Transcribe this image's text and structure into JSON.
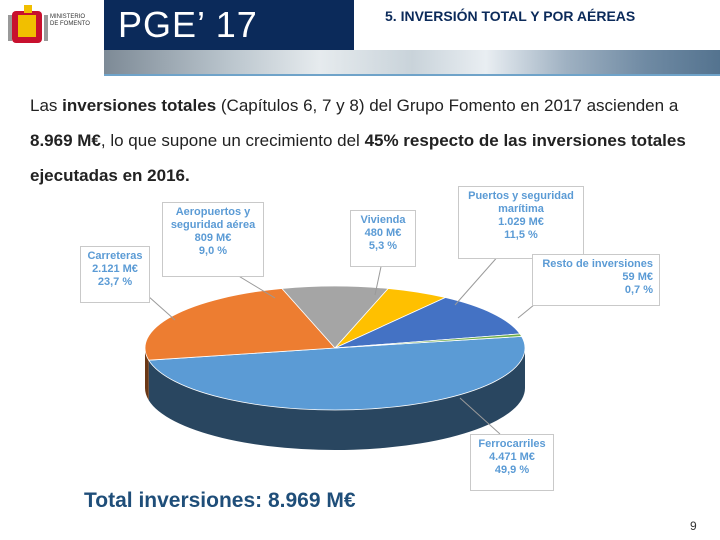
{
  "header": {
    "ministry_line1": "MINISTERIO",
    "ministry_line2": "DE FOMENTO",
    "pge": "PGE’ 17",
    "title": "5. INVERSIÓN TOTAL Y POR AÉREAS"
  },
  "intro": {
    "part1": "Las ",
    "bold1": "inversiones totales",
    "part2": " (Capítulos 6, 7 y 8) del Grupo Fomento en 2017 ascienden a ",
    "bold2": "8.969 M€",
    "part3": ", lo que supone un crecimiento del ",
    "bold3": "45% respecto de las inversiones totales ejecutadas en 2016."
  },
  "colors": {
    "ferrocarriles": "#5b9bd5",
    "carreteras": "#ed7d31",
    "aeropuertos": "#a5a5a5",
    "vivienda": "#ffc000",
    "puertos": "#4472c4",
    "resto": "#70ad47",
    "label_blue": "#5b9bd5",
    "title_blue": "#1f4e79"
  },
  "chart_data": {
    "type": "pie",
    "title": "Total inversiones: 8.969 M€",
    "slices": [
      {
        "name": "Ferrocarriles",
        "value": 4471,
        "value_label": "4.471 M€",
        "percent_label": "49,9 %"
      },
      {
        "name": "Carreteras",
        "value": 2121,
        "value_label": "2.121 M€",
        "percent_label": "23,7 %"
      },
      {
        "name": "Aeropuertos y seguridad aérea",
        "value": 809,
        "value_label": "809 M€",
        "percent_label": "9,0 %"
      },
      {
        "name": "Vivienda",
        "value": 480,
        "value_label": "480 M€",
        "percent_label": "5,3 %"
      },
      {
        "name": "Puertos y seguridad marítima",
        "value": 1029,
        "value_label": "1.029 M€",
        "percent_label": "11,5 %"
      },
      {
        "name": "Resto de inversiones",
        "value": 59,
        "value_label": "59 M€",
        "percent_label": "0,7 %"
      }
    ]
  },
  "callouts": {
    "aeropuertos": {
      "l1": "Aeropuertos y",
      "l2": "seguridad aérea",
      "v": "809 M€",
      "p": "9,0 %"
    },
    "vivienda": {
      "l1": "Vivienda",
      "v": "480 M€",
      "p": "5,3 %"
    },
    "puertos": {
      "l1": "Puertos y seguridad",
      "l2": "marítima",
      "v": "1.029 M€",
      "p": "11,5 %"
    },
    "resto": {
      "l1": "Resto de inversiones",
      "v": "59 M€",
      "p": "0,7 %"
    },
    "carreteras": {
      "l1": "Carreteras",
      "v": "2.121 M€",
      "p": "23,7 %"
    },
    "ferrocarriles": {
      "l1": "Ferrocarriles",
      "v": "4.471 M€",
      "p": "49,9 %"
    }
  },
  "footer": {
    "total": "Total inversiones: 8.969 M€",
    "page": "9"
  }
}
